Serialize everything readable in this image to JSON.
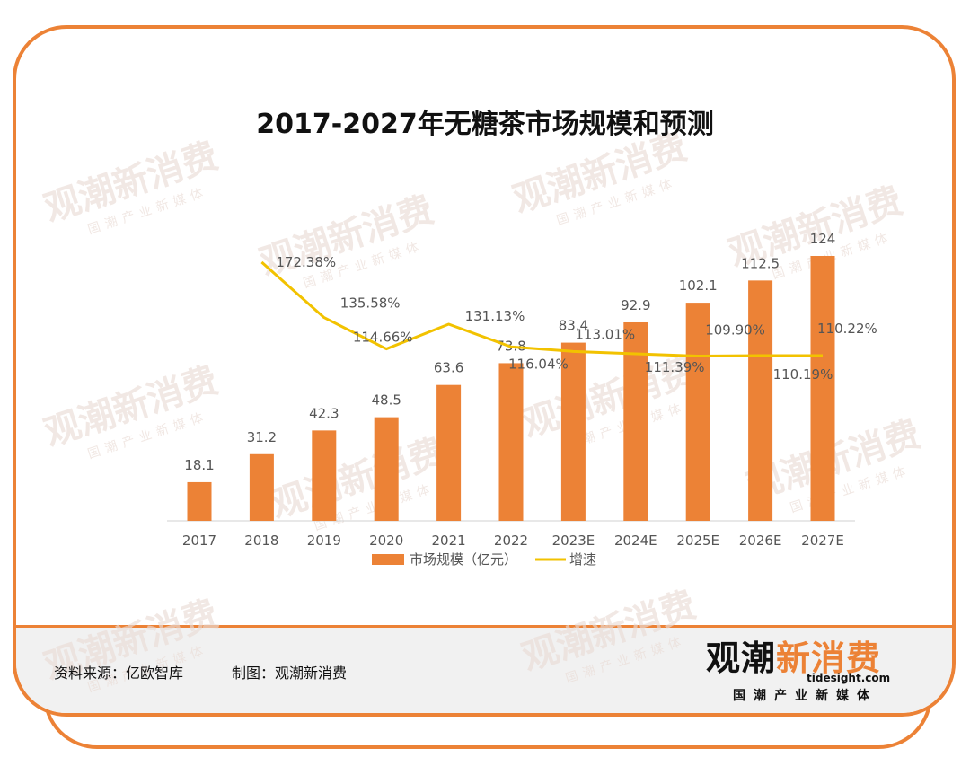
{
  "title": "2017-2027年无糖茶市场规模和预测",
  "chart_data": {
    "type": "bar",
    "categories": [
      "2017",
      "2018",
      "2019",
      "2020",
      "2021",
      "2022",
      "2023E",
      "2024E",
      "2025E",
      "2026E",
      "2027E"
    ],
    "series": [
      {
        "name": "市场规模（亿元）",
        "type": "bar",
        "values": [
          18.1,
          31.2,
          42.3,
          48.5,
          63.6,
          73.8,
          83.4,
          92.9,
          102.1,
          112.5,
          124
        ],
        "labels": [
          "18.1",
          "31.2",
          "42.3",
          "48.5",
          "63.6",
          "73.8",
          "83.4",
          "92.9",
          "102.1",
          "112.5",
          "124"
        ]
      },
      {
        "name": "增速",
        "type": "line",
        "values": [
          null,
          172.38,
          135.58,
          114.66,
          131.13,
          116.04,
          113.01,
          111.39,
          109.9,
          110.19,
          110.22
        ],
        "labels": [
          "",
          "172.38%",
          "135.58%",
          "114.66%",
          "131.13%",
          "116.04%",
          "113.01%",
          "111.39%",
          "109.90%",
          "110.19%",
          "110.22%"
        ]
      }
    ],
    "ylim": [
      0,
      124
    ],
    "y2lim": [
      0,
      172.38
    ],
    "legend": "bottom",
    "grid": false,
    "colors": {
      "bar": "#ec8236",
      "line": "#f2c200",
      "label": "#555555",
      "axis": "#d0d0d0"
    }
  },
  "footer": {
    "source": "资料来源：亿欧智库",
    "maker": "制图：观潮新消费"
  },
  "brand": {
    "name_a": "观潮",
    "name_b": "新消费",
    "domain": "tidesight.com",
    "tagline": "国潮产业新媒体"
  },
  "watermark": {
    "text": "观潮新消费",
    "domain": "tidesight.com",
    "tagline": "国潮产业新媒体"
  }
}
